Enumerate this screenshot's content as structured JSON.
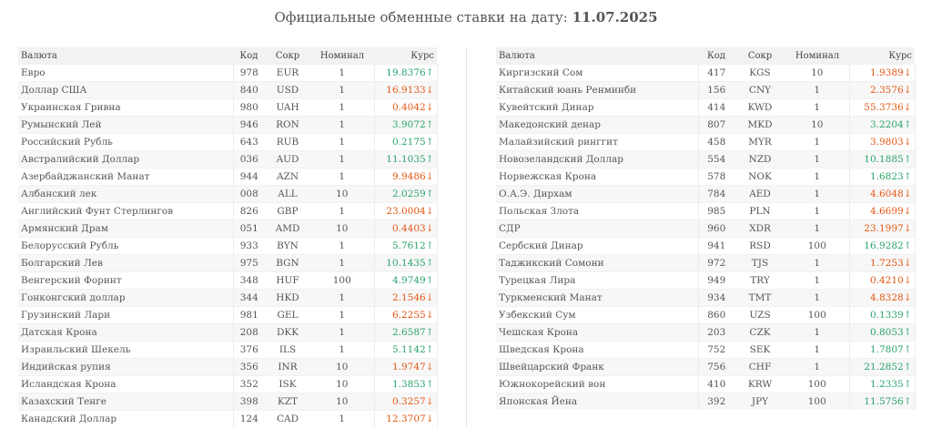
{
  "title": {
    "text": "Официальные обменные ставки на дату:",
    "date": "11.07.2025"
  },
  "headers": {
    "currency": "Валюта",
    "code": "Код",
    "abbr": "Сокр",
    "nominal": "Номинал",
    "rate": "Курс"
  },
  "colors": {
    "up": "#29a36a",
    "down": "#e55512"
  },
  "left": [
    {
      "name": "Евро",
      "code": "978",
      "abbr": "EUR",
      "nominal": "1",
      "rate": "19.8376↑",
      "trend": "up"
    },
    {
      "name": "Доллар США",
      "code": "840",
      "abbr": "USD",
      "nominal": "1",
      "rate": "16.9133↓",
      "trend": "down"
    },
    {
      "name": "Украинская Гривна",
      "code": "980",
      "abbr": "UAH",
      "nominal": "1",
      "rate": "0.4042↓",
      "trend": "down"
    },
    {
      "name": "Румынский Лей",
      "code": "946",
      "abbr": "RON",
      "nominal": "1",
      "rate": "3.9072↑",
      "trend": "up"
    },
    {
      "name": "Российский Рубль",
      "code": "643",
      "abbr": "RUB",
      "nominal": "1",
      "rate": "0.2175↑",
      "trend": "up"
    },
    {
      "name": "Австралийский Доллар",
      "code": "036",
      "abbr": "AUD",
      "nominal": "1",
      "rate": "11.1035↑",
      "trend": "up"
    },
    {
      "name": "Азербайджанский Манат",
      "code": "944",
      "abbr": "AZN",
      "nominal": "1",
      "rate": "9.9486↓",
      "trend": "down"
    },
    {
      "name": "Албанский лек",
      "code": "008",
      "abbr": "ALL",
      "nominal": "10",
      "rate": "2.0259↑",
      "trend": "up"
    },
    {
      "name": "Английский Фунт Стерлингов",
      "code": "826",
      "abbr": "GBP",
      "nominal": "1",
      "rate": "23.0004↓",
      "trend": "down"
    },
    {
      "name": "Армянский Драм",
      "code": "051",
      "abbr": "AMD",
      "nominal": "10",
      "rate": "0.4403↓",
      "trend": "down"
    },
    {
      "name": "Белорусский Рубль",
      "code": "933",
      "abbr": "BYN",
      "nominal": "1",
      "rate": "5.7612↑",
      "trend": "up"
    },
    {
      "name": "Болгарский Лев",
      "code": "975",
      "abbr": "BGN",
      "nominal": "1",
      "rate": "10.1435↑",
      "trend": "up"
    },
    {
      "name": "Венгерский Форинт",
      "code": "348",
      "abbr": "HUF",
      "nominal": "100",
      "rate": "4.9749↑",
      "trend": "up"
    },
    {
      "name": "Гонконгский доллар",
      "code": "344",
      "abbr": "HKD",
      "nominal": "1",
      "rate": "2.1546↓",
      "trend": "down"
    },
    {
      "name": "Грузинский Лари",
      "code": "981",
      "abbr": "GEL",
      "nominal": "1",
      "rate": "6.2255↓",
      "trend": "down"
    },
    {
      "name": "Датская Крона",
      "code": "208",
      "abbr": "DKK",
      "nominal": "1",
      "rate": "2.6587↑",
      "trend": "up"
    },
    {
      "name": "Израильский Шекель",
      "code": "376",
      "abbr": "ILS",
      "nominal": "1",
      "rate": "5.1142↑",
      "trend": "up"
    },
    {
      "name": "Индийская рупия",
      "code": "356",
      "abbr": "INR",
      "nominal": "10",
      "rate": "1.9747↓",
      "trend": "down"
    },
    {
      "name": "Исландская Крона",
      "code": "352",
      "abbr": "ISK",
      "nominal": "10",
      "rate": "1.3853↑",
      "trend": "up"
    },
    {
      "name": "Казахский Тенге",
      "code": "398",
      "abbr": "KZT",
      "nominal": "10",
      "rate": "0.3257↓",
      "trend": "down"
    },
    {
      "name": "Канадский Доллар",
      "code": "124",
      "abbr": "CAD",
      "nominal": "1",
      "rate": "12.3707↓",
      "trend": "down"
    }
  ],
  "right": [
    {
      "name": "Киргизский Сом",
      "code": "417",
      "abbr": "KGS",
      "nominal": "10",
      "rate": "1.9389↓",
      "trend": "down"
    },
    {
      "name": "Китайский юань Ренминби",
      "code": "156",
      "abbr": "CNY",
      "nominal": "1",
      "rate": "2.3576↓",
      "trend": "down"
    },
    {
      "name": "Кувейтский Динар",
      "code": "414",
      "abbr": "KWD",
      "nominal": "1",
      "rate": "55.3736↓",
      "trend": "down"
    },
    {
      "name": "Македонский денар",
      "code": "807",
      "abbr": "MKD",
      "nominal": "10",
      "rate": "3.2204↑",
      "trend": "up"
    },
    {
      "name": "Малайзийский ринггит",
      "code": "458",
      "abbr": "MYR",
      "nominal": "1",
      "rate": "3.9803↓",
      "trend": "down"
    },
    {
      "name": "Новозеландский Доллар",
      "code": "554",
      "abbr": "NZD",
      "nominal": "1",
      "rate": "10.1885↑",
      "trend": "up"
    },
    {
      "name": "Норвежская Крона",
      "code": "578",
      "abbr": "NOK",
      "nominal": "1",
      "rate": "1.6823↑",
      "trend": "up"
    },
    {
      "name": "О.А.Э. Дирхам",
      "code": "784",
      "abbr": "AED",
      "nominal": "1",
      "rate": "4.6048↓",
      "trend": "down"
    },
    {
      "name": "Польская Злота",
      "code": "985",
      "abbr": "PLN",
      "nominal": "1",
      "rate": "4.6699↓",
      "trend": "down"
    },
    {
      "name": "СДР",
      "code": "960",
      "abbr": "XDR",
      "nominal": "1",
      "rate": "23.1997↓",
      "trend": "down"
    },
    {
      "name": "Сербский Динар",
      "code": "941",
      "abbr": "RSD",
      "nominal": "100",
      "rate": "16.9282↑",
      "trend": "up"
    },
    {
      "name": "Таджикский Сомони",
      "code": "972",
      "abbr": "TJS",
      "nominal": "1",
      "rate": "1.7253↓",
      "trend": "down"
    },
    {
      "name": "Турецкая Лира",
      "code": "949",
      "abbr": "TRY",
      "nominal": "1",
      "rate": "0.4210↓",
      "trend": "down"
    },
    {
      "name": "Туркменский Манат",
      "code": "934",
      "abbr": "TMT",
      "nominal": "1",
      "rate": "4.8328↓",
      "trend": "down"
    },
    {
      "name": "Узбекский Сум",
      "code": "860",
      "abbr": "UZS",
      "nominal": "100",
      "rate": "0.1339↑",
      "trend": "up"
    },
    {
      "name": "Чешская Крона",
      "code": "203",
      "abbr": "CZK",
      "nominal": "1",
      "rate": "0.8053↑",
      "trend": "up"
    },
    {
      "name": "Шведская Крона",
      "code": "752",
      "abbr": "SEK",
      "nominal": "1",
      "rate": "1.7807↑",
      "trend": "up"
    },
    {
      "name": "Швейцарский Франк",
      "code": "756",
      "abbr": "CHF",
      "nominal": "1",
      "rate": "21.2852↑",
      "trend": "up"
    },
    {
      "name": "Южнокорейский вон",
      "code": "410",
      "abbr": "KRW",
      "nominal": "100",
      "rate": "1.2335↑",
      "trend": "up"
    },
    {
      "name": "Японская Йена",
      "code": "392",
      "abbr": "JPY",
      "nominal": "100",
      "rate": "11.5756↑",
      "trend": "up"
    }
  ]
}
